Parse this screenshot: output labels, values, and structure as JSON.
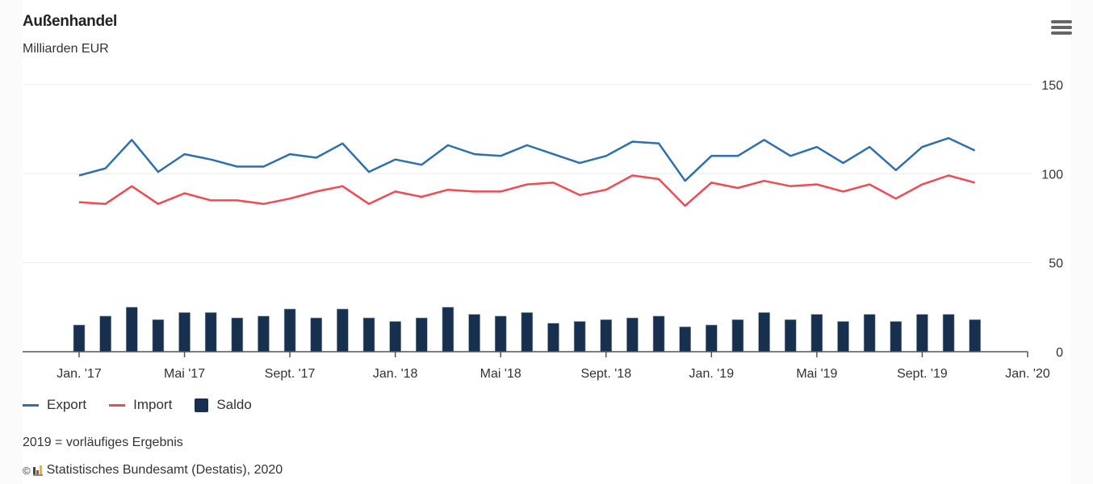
{
  "header": {
    "title": "Außenhandel",
    "subtitle": "Milliarden EUR",
    "menu_icon": "hamburger-menu-icon"
  },
  "legend": {
    "items": [
      {
        "label": "Export",
        "color": "#2f6fad",
        "type": "line"
      },
      {
        "label": "Import",
        "color": "#f04a52",
        "type": "line"
      },
      {
        "label": "Saldo",
        "color": "#17304f",
        "type": "bar"
      }
    ]
  },
  "footer": {
    "note": "2019 = vorläufiges Ergebnis",
    "copyright_symbol": "©",
    "source": "Statistisches Bundesamt (Destatis), 2020",
    "logo_icon": "destatis-logo-icon"
  },
  "chart_data": {
    "type": "line+bar",
    "title": "Außenhandel",
    "subtitle": "Milliarden EUR",
    "xlabel": "",
    "ylabel": "Milliarden EUR",
    "ylim": [
      0,
      150
    ],
    "yticks": [
      0,
      50,
      100,
      150
    ],
    "ytick_labels": [
      "0",
      "50",
      "100",
      "150"
    ],
    "xlim_months": [
      0,
      36
    ],
    "xticks_month_index": [
      0,
      4,
      8,
      12,
      16,
      20,
      24,
      28,
      32,
      36
    ],
    "xtick_labels": [
      "Jan. '17",
      "Mai '17",
      "Sept. '17",
      "Jan. '18",
      "Mai '18",
      "Sept. '18",
      "Jan. '19",
      "Mai '19",
      "Sept. '19",
      "Jan. '20"
    ],
    "grid": true,
    "legend_position": "bottom-left",
    "x": [
      "2017-01",
      "2017-02",
      "2017-03",
      "2017-04",
      "2017-05",
      "2017-06",
      "2017-07",
      "2017-08",
      "2017-09",
      "2017-10",
      "2017-11",
      "2017-12",
      "2018-01",
      "2018-02",
      "2018-03",
      "2018-04",
      "2018-05",
      "2018-06",
      "2018-07",
      "2018-08",
      "2018-09",
      "2018-10",
      "2018-11",
      "2018-12",
      "2019-01",
      "2019-02",
      "2019-03",
      "2019-04",
      "2019-05",
      "2019-06",
      "2019-07",
      "2019-08",
      "2019-09",
      "2019-10",
      "2019-11"
    ],
    "series": [
      {
        "name": "Export",
        "type": "line",
        "color": "#2f6fad",
        "values": [
          99,
          103,
          119,
          101,
          111,
          108,
          104,
          104,
          111,
          109,
          117,
          101,
          108,
          105,
          116,
          111,
          110,
          116,
          111,
          106,
          110,
          118,
          117,
          96,
          110,
          110,
          119,
          110,
          115,
          106,
          115,
          102,
          115,
          120,
          113
        ]
      },
      {
        "name": "Import",
        "type": "line",
        "color": "#f04a52",
        "values": [
          84,
          83,
          93,
          83,
          89,
          85,
          85,
          83,
          86,
          90,
          93,
          83,
          90,
          87,
          91,
          90,
          90,
          94,
          95,
          88,
          91,
          99,
          97,
          82,
          95,
          92,
          96,
          93,
          94,
          90,
          94,
          86,
          94,
          99,
          95
        ]
      },
      {
        "name": "Saldo",
        "type": "bar",
        "color": "#17304f",
        "values": [
          15,
          20,
          25,
          18,
          22,
          22,
          19,
          20,
          24,
          19,
          24,
          19,
          17,
          19,
          25,
          21,
          20,
          22,
          16,
          17,
          18,
          19,
          20,
          14,
          15,
          18,
          22,
          18,
          21,
          17,
          21,
          17,
          21,
          21,
          18
        ]
      }
    ]
  }
}
